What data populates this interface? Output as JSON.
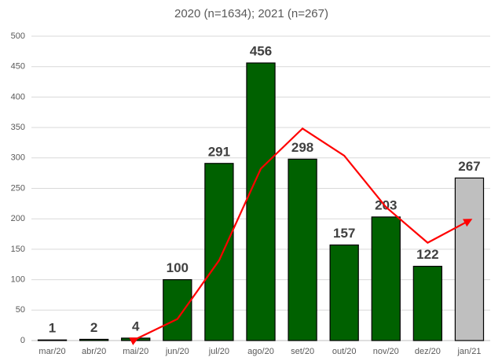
{
  "chart_data": {
    "type": "bar",
    "title": "2020 (n=1634); 2021 (n=267)",
    "categories": [
      "mar/20",
      "abr/20",
      "mai/20",
      "jun/20",
      "jul/20",
      "ago/20",
      "set/20",
      "out/20",
      "nov/20",
      "dez/20",
      "jan/21"
    ],
    "values": [
      1,
      2,
      4,
      100,
      291,
      456,
      298,
      157,
      203,
      122,
      267
    ],
    "colors": [
      "#006100",
      "#006100",
      "#006100",
      "#006100",
      "#006100",
      "#006100",
      "#006100",
      "#006100",
      "#006100",
      "#006100",
      "#bfbfbf"
    ],
    "line": {
      "values": [
        null,
        null,
        2.3,
        35.3,
        131.7,
        282.3,
        348.3,
        303.7,
        219.3,
        160.7,
        197.3
      ],
      "color": "#ff0000"
    },
    "ylim": [
      0,
      500
    ],
    "yticks": [
      0,
      50,
      100,
      150,
      200,
      250,
      300,
      350,
      400,
      450,
      500
    ],
    "grid": true
  }
}
